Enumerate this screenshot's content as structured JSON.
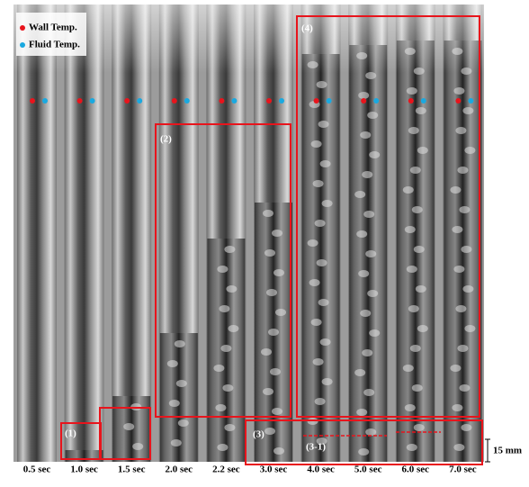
{
  "legend": {
    "wall": "Wall Temp.",
    "fluid": "Fluid Temp."
  },
  "regions": [
    "(1)",
    "(2)",
    "(3)",
    "(3-1)",
    "(4)"
  ],
  "time_labels": [
    "0.5 sec",
    "1.0 sec",
    "1.5 sec",
    "2.0 sec",
    "2.2 sec",
    "3.0 sec",
    "4.0 sec",
    "5.0 sec",
    "6.0 sec",
    "7.0 sec"
  ],
  "scale_bar": "15 mm"
}
